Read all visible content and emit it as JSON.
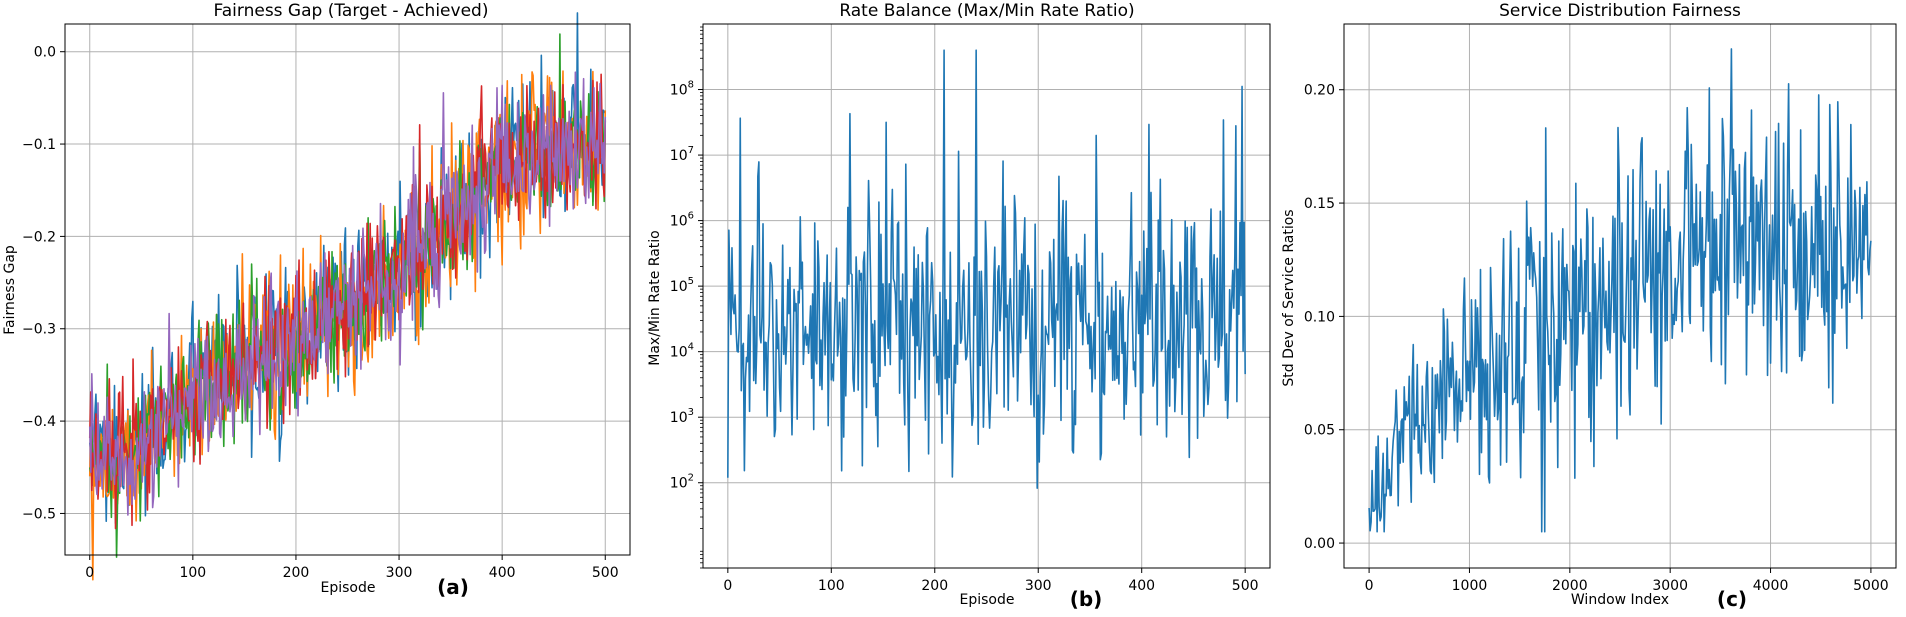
{
  "chart_data": [
    {
      "type": "line",
      "panel_label": "(a)",
      "title": "Fairness Gap (Target - Achieved)",
      "xlabel": "Episode",
      "ylabel": "Fairness Gap",
      "xlim": [
        -24,
        524
      ],
      "ylim": [
        -0.545,
        0.03
      ],
      "xticks": [
        0,
        100,
        200,
        300,
        400,
        500
      ],
      "xtick_labels": [
        "0",
        "100",
        "200",
        "300",
        "400",
        "500"
      ],
      "yticks": [
        -0.5,
        -0.4,
        -0.3,
        -0.2,
        -0.1,
        0.0
      ],
      "ytick_labels": [
        "−0.5",
        "−0.4",
        "−0.3",
        "−0.2",
        "−0.1",
        "0.0"
      ],
      "grid": true,
      "x": {
        "start": 0,
        "end": 500,
        "count": 501
      },
      "series": [
        {
          "name": "series-1",
          "color": "#1f77b4",
          "trend": [
            [
              0,
              -0.43
            ],
            [
              25,
              -0.45
            ],
            [
              100,
              -0.37
            ],
            [
              200,
              -0.31
            ],
            [
              300,
              -0.24
            ],
            [
              350,
              -0.19
            ],
            [
              400,
              -0.12
            ],
            [
              500,
              -0.09
            ]
          ],
          "noise": 0.038
        },
        {
          "name": "series-2",
          "color": "#ff7f0e",
          "trend": [
            [
              0,
              -0.43
            ],
            [
              25,
              -0.45
            ],
            [
              100,
              -0.37
            ],
            [
              200,
              -0.31
            ],
            [
              300,
              -0.24
            ],
            [
              350,
              -0.19
            ],
            [
              400,
              -0.12
            ],
            [
              500,
              -0.09
            ]
          ],
          "noise": 0.04
        },
        {
          "name": "series-3",
          "color": "#2ca02c",
          "trend": [
            [
              0,
              -0.43
            ],
            [
              25,
              -0.45
            ],
            [
              100,
              -0.37
            ],
            [
              200,
              -0.31
            ],
            [
              300,
              -0.24
            ],
            [
              350,
              -0.19
            ],
            [
              400,
              -0.12
            ],
            [
              500,
              -0.1
            ]
          ],
          "noise": 0.036
        },
        {
          "name": "series-4",
          "color": "#d62728",
          "trend": [
            [
              0,
              -0.43
            ],
            [
              25,
              -0.45
            ],
            [
              100,
              -0.37
            ],
            [
              200,
              -0.31
            ],
            [
              300,
              -0.24
            ],
            [
              350,
              -0.19
            ],
            [
              400,
              -0.12
            ],
            [
              500,
              -0.1
            ]
          ],
          "noise": 0.036
        },
        {
          "name": "series-5",
          "color": "#9467bd",
          "trend": [
            [
              0,
              -0.43
            ],
            [
              25,
              -0.45
            ],
            [
              100,
              -0.37
            ],
            [
              200,
              -0.31
            ],
            [
              300,
              -0.24
            ],
            [
              350,
              -0.19
            ],
            [
              400,
              -0.12
            ],
            [
              500,
              -0.1
            ]
          ],
          "noise": 0.038
        }
      ]
    },
    {
      "type": "line",
      "panel_label": "(b)",
      "title": "Rate Balance (Max/Min Rate Ratio)",
      "xlabel": "Episode",
      "ylabel": "Max/Min Rate Ratio",
      "yscale": "log",
      "xlim": [
        -24,
        524
      ],
      "ylim": [
        5,
        1000000000
      ],
      "xticks": [
        0,
        100,
        200,
        300,
        400,
        500
      ],
      "xtick_labels": [
        "0",
        "100",
        "200",
        "300",
        "400",
        "500"
      ],
      "yticks": [
        100,
        1000,
        10000,
        100000,
        1000000,
        10000000,
        100000000
      ],
      "ytick_base": "10",
      "ytick_exponents": [
        "2",
        "3",
        "4",
        "5",
        "6",
        "7",
        "8"
      ],
      "grid": true,
      "x": {
        "start": 0,
        "end": 500,
        "count": 501
      },
      "series": [
        {
          "name": "max-min-ratio",
          "color": "#1f77b4",
          "log10_center": 4.4,
          "log10_noise": 0.95,
          "log10_min": 1.65,
          "log10_max": 8.6
        }
      ]
    },
    {
      "type": "line",
      "panel_label": "(c)",
      "title": "Service Distribution Fairness",
      "xlabel": "Window Index",
      "ylabel": "Std Dev of Service Ratios",
      "xlim": [
        -250,
        5250
      ],
      "ylim": [
        -0.011,
        0.229
      ],
      "xticks": [
        0,
        1000,
        2000,
        3000,
        4000,
        5000
      ],
      "xtick_labels": [
        "0",
        "1000",
        "2000",
        "3000",
        "4000",
        "5000"
      ],
      "yticks": [
        0.0,
        0.05,
        0.1,
        0.15,
        0.2
      ],
      "ytick_labels": [
        "0.00",
        "0.05",
        "0.10",
        "0.15",
        "0.20"
      ],
      "grid": true,
      "x": {
        "start": 0,
        "end": 5000,
        "count": 501
      },
      "series": [
        {
          "name": "std-dev-service-ratios",
          "color": "#1f77b4",
          "trend": [
            [
              0,
              0.01
            ],
            [
              300,
              0.045
            ],
            [
              1000,
              0.075
            ],
            [
              2000,
              0.105
            ],
            [
              3000,
              0.125
            ],
            [
              4000,
              0.13
            ],
            [
              5000,
              0.13
            ]
          ],
          "noise": 0.032,
          "min": 0.005,
          "max": 0.218
        }
      ]
    }
  ]
}
